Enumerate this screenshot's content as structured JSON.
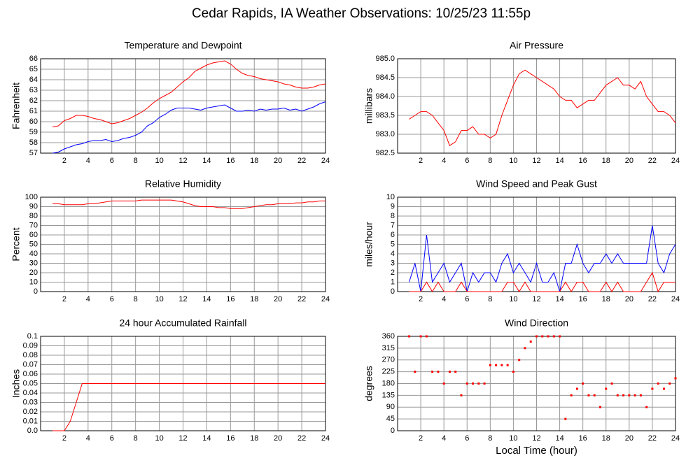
{
  "title": "Cedar Rapids, IA Weather Observations: 10/25/23 11:55p",
  "chart_data": [
    {
      "type": "line",
      "title": "Temperature and Dewpoint",
      "y_label": "Fahrenheit",
      "x": [
        1,
        1.5,
        2,
        2.5,
        3,
        3.5,
        4,
        4.5,
        5,
        5.5,
        6,
        6.5,
        7,
        7.5,
        8,
        8.5,
        9,
        9.5,
        10,
        10.5,
        11,
        11.5,
        12,
        12.5,
        13,
        13.5,
        14,
        14.5,
        15,
        15.5,
        16,
        16.5,
        17,
        17.5,
        18,
        18.5,
        19,
        19.5,
        20,
        20.5,
        21,
        21.5,
        22,
        22.5,
        23,
        23.5,
        24
      ],
      "series": [
        {
          "color": "#ff0000",
          "values": [
            59.5,
            59.6,
            60.1,
            60.3,
            60.6,
            60.6,
            60.5,
            60.3,
            60.2,
            60.0,
            59.8,
            59.9,
            60.1,
            60.3,
            60.6,
            60.9,
            61.3,
            61.8,
            62.2,
            62.5,
            62.8,
            63.3,
            63.8,
            64.2,
            64.8,
            65.1,
            65.4,
            65.6,
            65.7,
            65.8,
            65.5,
            65.0,
            64.6,
            64.4,
            64.3,
            64.1,
            64.0,
            63.9,
            63.8,
            63.6,
            63.5,
            63.3,
            63.2,
            63.2,
            63.3,
            63.5,
            63.6
          ]
        },
        {
          "color": "#0000ff",
          "values": [
            57.0,
            57.1,
            57.4,
            57.6,
            57.8,
            57.9,
            58.1,
            58.2,
            58.2,
            58.3,
            58.1,
            58.2,
            58.4,
            58.5,
            58.7,
            59.0,
            59.6,
            59.9,
            60.4,
            60.7,
            61.1,
            61.3,
            61.3,
            61.3,
            61.2,
            61.1,
            61.3,
            61.4,
            61.5,
            61.6,
            61.3,
            61.0,
            61.0,
            61.1,
            61.0,
            61.2,
            61.1,
            61.2,
            61.2,
            61.3,
            61.1,
            61.2,
            61.0,
            61.2,
            61.4,
            61.7,
            61.9
          ]
        }
      ],
      "xlim": [
        0,
        24
      ],
      "xticks": [
        2,
        4,
        6,
        8,
        10,
        12,
        14,
        16,
        18,
        20,
        22,
        24
      ],
      "ylim": [
        57,
        66
      ],
      "yticks": [
        57,
        58,
        59,
        60,
        61,
        62,
        63,
        64,
        65,
        66
      ],
      "grid": true
    },
    {
      "type": "line",
      "title": "Air Pressure",
      "y_label": "millibars",
      "x": [
        1,
        1.5,
        2,
        2.5,
        3,
        3.5,
        4,
        4.5,
        5,
        5.5,
        6,
        6.5,
        7,
        7.5,
        8,
        8.5,
        9,
        9.5,
        10,
        10.5,
        11,
        11.5,
        12,
        12.5,
        13,
        13.5,
        14,
        14.5,
        15,
        15.5,
        16,
        16.5,
        17,
        17.5,
        18,
        18.5,
        19,
        19.5,
        20,
        20.5,
        21,
        21.5,
        22,
        22.5,
        23,
        23.5,
        24
      ],
      "values": [
        983.4,
        983.5,
        983.6,
        983.6,
        983.5,
        983.3,
        983.1,
        982.7,
        982.8,
        983.1,
        983.1,
        983.2,
        983.0,
        983.0,
        982.9,
        983.0,
        983.5,
        983.9,
        984.3,
        984.6,
        984.7,
        984.6,
        984.5,
        984.4,
        984.3,
        984.2,
        984.0,
        983.9,
        983.9,
        983.7,
        983.8,
        983.9,
        983.9,
        984.1,
        984.3,
        984.4,
        984.5,
        984.3,
        984.3,
        984.2,
        984.4,
        984.0,
        983.8,
        983.6,
        983.6,
        983.5,
        983.3
      ],
      "color": "#ff0000",
      "xlim": [
        0,
        24
      ],
      "xticks": [
        2,
        4,
        6,
        8,
        10,
        12,
        14,
        16,
        18,
        20,
        22,
        24
      ],
      "ylim": [
        982.5,
        985
      ],
      "yticks": [
        982.5,
        {
          "value": 983,
          "label": "983.0"
        },
        983.5,
        {
          "value": 984,
          "label": "984.0"
        },
        984.5,
        {
          "value": 985,
          "label": "985.0"
        }
      ],
      "grid": true
    },
    {
      "type": "line",
      "title": "Relative Humidity",
      "y_label": "Percent",
      "x": [
        1,
        1.5,
        2,
        2.5,
        3,
        3.5,
        4,
        4.5,
        5,
        5.5,
        6,
        6.5,
        7,
        7.5,
        8,
        8.5,
        9,
        9.5,
        10,
        10.5,
        11,
        11.5,
        12,
        12.5,
        13,
        13.5,
        14,
        14.5,
        15,
        15.5,
        16,
        16.5,
        17,
        17.5,
        18,
        18.5,
        19,
        19.5,
        20,
        20.5,
        21,
        21.5,
        22,
        22.5,
        23,
        23.5,
        24
      ],
      "values": [
        93,
        93,
        92,
        92,
        92,
        92,
        93,
        93,
        94,
        95,
        96,
        96,
        96,
        96,
        96,
        97,
        97,
        97,
        97,
        97,
        97,
        96,
        95,
        93,
        91,
        90,
        90,
        90,
        89,
        89,
        88,
        88,
        88,
        89,
        90,
        91,
        92,
        92,
        93,
        93,
        93,
        94,
        94,
        95,
        95,
        96,
        96
      ],
      "color": "#ff0000",
      "xlim": [
        0,
        24
      ],
      "xticks": [
        2,
        4,
        6,
        8,
        10,
        12,
        14,
        16,
        18,
        20,
        22,
        24
      ],
      "ylim": [
        0,
        100
      ],
      "yticks": [
        0,
        10,
        20,
        30,
        40,
        50,
        60,
        70,
        80,
        90,
        100
      ],
      "grid": true
    },
    {
      "type": "line",
      "title": "Wind Speed and Peak Gust",
      "y_label": "miles/hour",
      "x": [
        1,
        1.5,
        2,
        2.5,
        3,
        3.5,
        4,
        4.5,
        5,
        5.5,
        6,
        6.5,
        7,
        7.5,
        8,
        8.5,
        9,
        9.5,
        10,
        10.5,
        11,
        11.5,
        12,
        12.5,
        13,
        13.5,
        14,
        14.5,
        15,
        15.5,
        16,
        16.5,
        17,
        17.5,
        18,
        18.5,
        19,
        19.5,
        20,
        20.5,
        21,
        21.5,
        22,
        22.5,
        23,
        23.5,
        24
      ],
      "series": [
        {
          "color": "#0000ff",
          "values": [
            1,
            3,
            0,
            6,
            1,
            2,
            3,
            1,
            2,
            3,
            0,
            2,
            1,
            2,
            2,
            1,
            3,
            4,
            2,
            3,
            2,
            1,
            3,
            1,
            1,
            2,
            0,
            3,
            3,
            5,
            3,
            2,
            3,
            3,
            4,
            3,
            4,
            3,
            3,
            3,
            3,
            3,
            7,
            3,
            2,
            4,
            5
          ]
        },
        {
          "color": "#ff0000",
          "values": [
            0,
            0,
            0,
            1,
            0,
            1,
            0,
            0,
            0,
            1,
            0,
            0,
            0,
            0,
            0,
            0,
            0,
            1,
            1,
            0,
            1,
            0,
            0,
            0,
            0,
            0,
            0,
            1,
            0,
            1,
            1,
            0,
            0,
            0,
            1,
            0,
            1,
            0,
            0,
            0,
            0,
            1,
            2,
            0,
            1,
            1,
            1
          ]
        }
      ],
      "xlim": [
        0,
        24
      ],
      "xticks": [
        2,
        4,
        6,
        8,
        10,
        12,
        14,
        16,
        18,
        20,
        22,
        24
      ],
      "ylim": [
        0,
        10
      ],
      "yticks": [
        0,
        1,
        2,
        3,
        4,
        5,
        6,
        7,
        8,
        9,
        10
      ],
      "grid": true
    },
    {
      "type": "line",
      "title": "24 hour Accumulated Rainfall",
      "y_label": "Inches",
      "x": [
        1,
        1.5,
        2,
        2.5,
        3,
        3.5,
        4,
        4.5,
        5,
        5.5,
        6,
        6.5,
        7,
        7.5,
        8,
        8.5,
        9,
        9.5,
        10,
        10.5,
        11,
        11.5,
        12,
        12.5,
        13,
        13.5,
        14,
        14.5,
        15,
        15.5,
        16,
        16.5,
        17,
        17.5,
        18,
        18.5,
        19,
        19.5,
        20,
        20.5,
        21,
        21.5,
        22,
        22.5,
        23,
        23.5,
        24
      ],
      "values": [
        0,
        0,
        0,
        0.01,
        0.03,
        0.05,
        0.05,
        0.05,
        0.05,
        0.05,
        0.05,
        0.05,
        0.05,
        0.05,
        0.05,
        0.05,
        0.05,
        0.05,
        0.05,
        0.05,
        0.05,
        0.05,
        0.05,
        0.05,
        0.05,
        0.05,
        0.05,
        0.05,
        0.05,
        0.05,
        0.05,
        0.05,
        0.05,
        0.05,
        0.05,
        0.05,
        0.05,
        0.05,
        0.05,
        0.05,
        0.05,
        0.05,
        0.05,
        0.05,
        0.05,
        0.05,
        0.05
      ],
      "color": "#ff0000",
      "xlim": [
        0,
        24
      ],
      "xticks": [
        2,
        4,
        6,
        8,
        10,
        12,
        14,
        16,
        18,
        20,
        22,
        24
      ],
      "ylim": [
        0,
        0.1
      ],
      "yticks": [
        {
          "value": 0,
          "label": "0.0"
        },
        0.01,
        0.02,
        0.03,
        0.04,
        0.05,
        0.06,
        0.07,
        0.08,
        0.09,
        0.1
      ],
      "grid": true
    },
    {
      "type": "scatter",
      "title": "Wind Direction",
      "y_label": "degrees",
      "x_label": "Local Time (hour)",
      "x": [
        1,
        1.5,
        2,
        2.5,
        3,
        3.5,
        4,
        4.5,
        5,
        5.5,
        6,
        6.5,
        7,
        7.5,
        8,
        8.5,
        9,
        9.5,
        10,
        10.5,
        11,
        11.5,
        12,
        12.5,
        13,
        13.5,
        14,
        14.5,
        15,
        15.5,
        16,
        16.5,
        17,
        17.5,
        18,
        18.5,
        19,
        19.5,
        20,
        20.5,
        21,
        21.5,
        22,
        22.5,
        23,
        23.5,
        24
      ],
      "values": [
        360,
        225,
        360,
        360,
        225,
        225,
        180,
        225,
        225,
        135,
        180,
        180,
        180,
        180,
        250,
        250,
        250,
        250,
        225,
        270,
        315,
        340,
        360,
        360,
        360,
        360,
        360,
        45,
        135,
        160,
        180,
        135,
        135,
        90,
        160,
        180,
        135,
        135,
        135,
        135,
        135,
        90,
        160,
        180,
        160,
        180,
        200
      ],
      "color": "#ff0000",
      "xlim": [
        0,
        24
      ],
      "xticks": [
        2,
        4,
        6,
        8,
        10,
        12,
        14,
        16,
        18,
        20,
        22,
        24
      ],
      "ylim": [
        0,
        360
      ],
      "yticks": [
        0,
        45,
        90,
        135,
        180,
        225,
        270,
        315,
        360
      ],
      "grid": true
    }
  ]
}
